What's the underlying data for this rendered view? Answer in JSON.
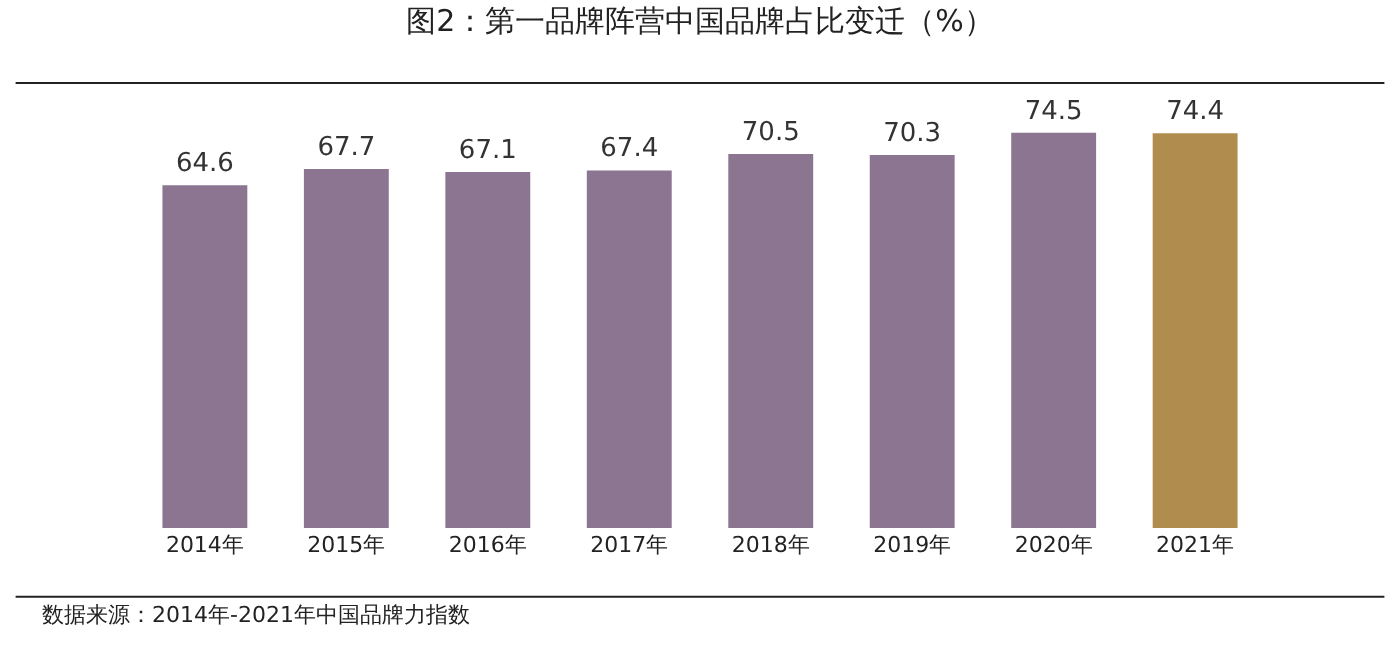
{
  "chart_data": {
    "type": "bar",
    "title": "图2：第一品牌阵营中国品牌占比变迁（%）",
    "categories": [
      "2014年",
      "2015年",
      "2016年",
      "2017年",
      "2018年",
      "2019年",
      "2020年",
      "2021年"
    ],
    "values": [
      64.6,
      67.7,
      67.1,
      67.4,
      70.5,
      70.3,
      74.5,
      74.4
    ],
    "colors": [
      "#8b7590",
      "#8b7590",
      "#8b7590",
      "#8b7590",
      "#8b7590",
      "#8b7590",
      "#8b7590",
      "#b08d4e"
    ],
    "data_labels": true,
    "legend": false,
    "annotations": [
      "数据来源：2014年-2021年中国品牌力指数"
    ]
  }
}
